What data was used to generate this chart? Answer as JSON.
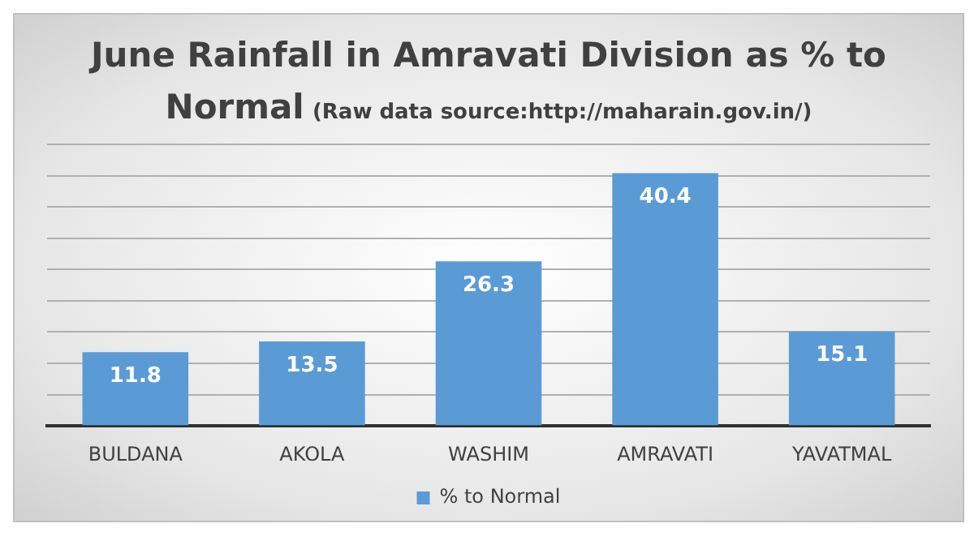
{
  "chart_data": {
    "type": "bar",
    "title": "June Rainfall in Amravati Division as % to Normal",
    "subtitle": "(Raw data source:http://maharain.gov.in/)",
    "categories": [
      "BULDANA",
      "AKOLA",
      "WASHIM",
      "AMRAVATI",
      "YAVATMAL"
    ],
    "series": [
      {
        "name": "% to Normal",
        "color": "#5b9bd5",
        "values": [
          11.8,
          13.5,
          26.3,
          40.4,
          15.1
        ]
      }
    ],
    "ylim": [
      0,
      45
    ],
    "yticks": [
      {
        "value": 0,
        "label": null
      },
      {
        "value": 5,
        "label": null
      },
      {
        "value": 10,
        "label": null
      },
      {
        "value": 15,
        "label": null
      },
      {
        "value": 20,
        "label": null
      },
      {
        "value": 25,
        "label": null
      },
      {
        "value": 30,
        "label": null
      },
      {
        "value": 35,
        "label": null
      },
      {
        "value": 40,
        "label": null
      },
      {
        "value": 45,
        "label": null
      }
    ],
    "tick_labels": "x",
    "grid": "y",
    "legend": "bottom",
    "data_labels": true
  }
}
